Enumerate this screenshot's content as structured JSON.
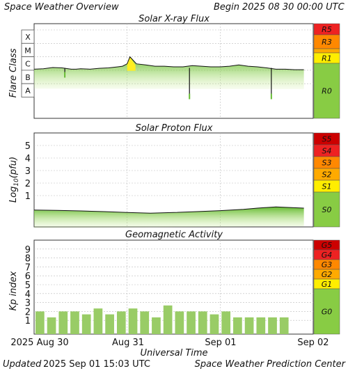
{
  "header": {
    "title": "Space Weather Overview",
    "begin_label": "Begin",
    "begin_date": "2025 08 30 00:00 UTC"
  },
  "footer": {
    "updated_label": "Updated",
    "updated_time": "2025 Sep 01 15:03 UTC",
    "source": "Space Weather Prediction Center"
  },
  "x_axis": {
    "label": "Universal Time",
    "ticks": [
      "2025 Aug 30",
      "Aug 31",
      "Sep 01",
      "Sep 02"
    ]
  },
  "colors": {
    "extreme": "#cc0000",
    "severe": "#ee2222",
    "strong": "#ff8800",
    "moderate": "#ffaa00",
    "minor": "#ffee00",
    "quiet": "#88cc44",
    "bar": "#99cc66"
  },
  "chart_data": [
    {
      "type": "area",
      "title": "Solar X-ray Flux",
      "ylabel": "Flare Class",
      "x_range_days": [
        0,
        3
      ],
      "class_labels": [
        "X",
        "M",
        "C",
        "B",
        "A"
      ],
      "scale_labels": [
        "R5",
        "R3",
        "R1",
        "R0"
      ],
      "series": [
        {
          "x_days": [
            0.0,
            0.1,
            0.2,
            0.3,
            0.4,
            0.45,
            0.5,
            0.6,
            0.7,
            0.8,
            0.9,
            0.95,
            1.0,
            1.03,
            1.1,
            1.2,
            1.3,
            1.4,
            1.5,
            1.6,
            1.7,
            1.8,
            1.9,
            2.0,
            2.1,
            2.2,
            2.3,
            2.4,
            2.5,
            2.6,
            2.7,
            2.8,
            2.9
          ],
          "class_level": [
            "C1.2",
            "C1.3",
            "C1.6",
            "C1.5",
            "C1.2",
            "C1.2",
            "C1.3",
            "C1.2",
            "C1.4",
            "C1.5",
            "C1.8",
            "C2.0",
            "C3.0",
            "M1.0",
            "C3.0",
            "C2.5",
            "C2.0",
            "C2.0",
            "C1.8",
            "C1.8",
            "C2.2",
            "C2.0",
            "C1.8",
            "C1.8",
            "C2.0",
            "C2.5",
            "C2.0",
            "C1.8",
            "C1.5",
            "C1.2",
            "C1.2",
            "C1.1",
            "C1.1"
          ]
        }
      ]
    },
    {
      "type": "area",
      "title": "Solar Proton Flux",
      "ylabel": "Log10(pfu)",
      "ylim": [
        -1.5,
        6
      ],
      "yticks": [
        1,
        2,
        3,
        4,
        5
      ],
      "scale_labels": [
        "S5",
        "S4",
        "S3",
        "S2",
        "S1",
        "S0"
      ],
      "series": [
        {
          "x_days": [
            0.0,
            0.25,
            0.5,
            0.75,
            1.0,
            1.25,
            1.5,
            1.75,
            2.0,
            2.25,
            2.4,
            2.6,
            2.75,
            2.9
          ],
          "log10_pfu": [
            -0.15,
            -0.18,
            -0.22,
            -0.28,
            -0.35,
            -0.4,
            -0.35,
            -0.28,
            -0.2,
            -0.1,
            0.0,
            0.1,
            0.05,
            0.0
          ]
        }
      ]
    },
    {
      "type": "bar",
      "title": "Geomagnetic Activity",
      "ylabel": "Kp index",
      "ylim": [
        0,
        10
      ],
      "yticks": [
        1,
        2,
        3,
        4,
        5,
        6,
        7,
        8,
        9
      ],
      "scale_labels": [
        "G5",
        "G4",
        "G3",
        "G2",
        "G1",
        "G0"
      ],
      "x_days_start": 0,
      "bar_width_days": 0.125,
      "values": [
        2.0,
        1.33,
        2.0,
        2.0,
        1.67,
        2.33,
        1.67,
        2.0,
        2.33,
        2.0,
        1.33,
        2.67,
        2.0,
        2.0,
        2.0,
        1.67,
        2.0,
        1.33,
        1.33,
        1.33,
        1.33,
        1.33
      ]
    }
  ]
}
